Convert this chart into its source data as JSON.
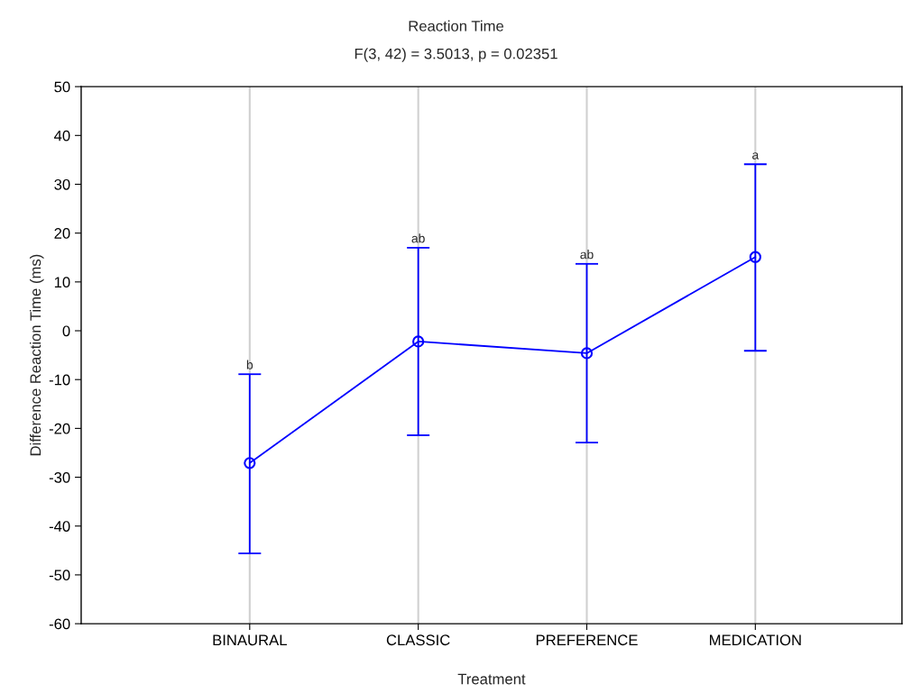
{
  "chart_data": {
    "type": "line",
    "title": "Reaction Time",
    "subtitle": "F(3, 42) = 3.5013, p = 0.02351",
    "xlabel": "Treatment",
    "ylabel": "Difference Reaction Time (ms)",
    "categories": [
      "BINAURAL",
      "CLASSIC",
      "PREFERENCE",
      "MEDICATION"
    ],
    "series": [
      {
        "color": "#0000ff",
        "values": [
          -27.1,
          -2.2,
          -4.6,
          15.1
        ],
        "errors": [
          [
            -45.6,
            -8.9
          ],
          [
            -21.4,
            17.0
          ],
          [
            -22.9,
            13.7
          ],
          [
            -4.1,
            34.1
          ]
        ]
      }
    ],
    "ylim": [
      -60,
      50
    ],
    "yticks": [
      -60,
      -50,
      -40,
      -30,
      -20,
      -10,
      0,
      10,
      20,
      30,
      40,
      50
    ],
    "annotations": [
      {
        "text": "b",
        "x": "BINAURAL",
        "y": -8.9
      },
      {
        "text": "ab",
        "x": "CLASSIC",
        "y": 17.0
      },
      {
        "text": "ab",
        "x": "PREFERENCE",
        "y": 13.7
      },
      {
        "text": "a",
        "x": "MEDICATION",
        "y": 34.1
      }
    ],
    "grid": "x",
    "marker": "circle",
    "line_style": "solid",
    "legend": false
  }
}
